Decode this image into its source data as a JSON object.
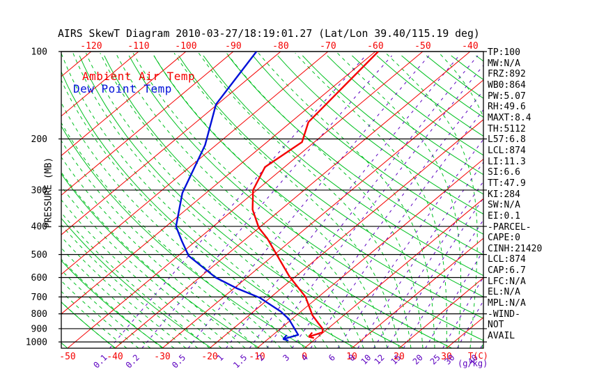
{
  "header": {
    "title": "AIRS SkewT Diagram 2010-03-27/18:19:01.27 (Lat/Lon 39.40/115.19 deg)"
  },
  "legend": {
    "temp": "Ambient Air Temp",
    "dewpoint": "Dew Point Temp"
  },
  "axes": {
    "pressure_label": "PRESSURE (MB)",
    "temp_unit_label": "T(C)",
    "mixing_unit_label": "(g/kg)"
  },
  "stats": {
    "items": [
      "TP:100",
      "MW:N/A",
      "FRZ:892",
      "WB0:864",
      "PW:5.07",
      "RH:49.6",
      "MAXT:8.4",
      "TH:5112",
      "L57:6.8",
      "LCL:874",
      "LI:11.3",
      "SI:6.6",
      "TT:47.9",
      "KI:284",
      "SW:N/A",
      "EI:0.1",
      "-PARCEL-",
      "CAPE:0",
      "CINH:21420",
      "LCL:874",
      "CAP:6.7",
      "LFC:N/A",
      "EL:N/A",
      "MPL:N/A",
      "-WIND-",
      "NOT",
      "AVAIL"
    ]
  },
  "chart_data": {
    "type": "skewt-log-p",
    "title": "AIRS SkewT Diagram 2010-03-27/18:19:01.27 (Lat/Lon 39.40/115.19 deg)",
    "pressure_axis": {
      "label": "PRESSURE (MB)",
      "ticks_mb": [
        100,
        200,
        300,
        400,
        500,
        600,
        700,
        800,
        900,
        1000
      ],
      "range_mb": [
        100,
        1051
      ],
      "scale": "log"
    },
    "temp_axis": {
      "unit": "T(C)",
      "bottom_ticks_c": [
        -50,
        -40,
        -30,
        -20,
        -10,
        0,
        10,
        20,
        30
      ],
      "top_ticks_c": [
        -120,
        -110,
        -100,
        -90,
        -80,
        -70,
        -60,
        -50,
        -40
      ],
      "skew": "isotherms slant up-right ~50 deg"
    },
    "isotherms_c": {
      "start": -130,
      "end": 40,
      "step": 10
    },
    "dry_adiabats_theta_k": {
      "start": 220,
      "end": 450,
      "step": 10
    },
    "moist_adiabats_start_c": {
      "start": -40,
      "end": 45,
      "step": 2.5
    },
    "mixing_ratio_lines_gkg": [
      0.1,
      0.2,
      0.5,
      1,
      1.5,
      2,
      3,
      4,
      6,
      8,
      10,
      12,
      15,
      20,
      25,
      30,
      40
    ],
    "mixing_ratio_label_unit": "(g/kg)",
    "series": [
      {
        "name": "Ambient Air Temp",
        "color": "#f40000",
        "points_p_mb_t_c": [
          [
            100,
            -59.4
          ],
          [
            175,
            -56.3
          ],
          [
            205,
            -52.6
          ],
          [
            250,
            -54.1
          ],
          [
            300,
            -50.8
          ],
          [
            350,
            -46.0
          ],
          [
            405,
            -40.0
          ],
          [
            440,
            -35.6
          ],
          [
            595,
            -21.3
          ],
          [
            700,
            -12.7
          ],
          [
            810,
            -6.6
          ],
          [
            860,
            -3.5
          ],
          [
            900,
            -1.1
          ],
          [
            926,
            -0.2
          ],
          [
            960,
            -2.0
          ]
        ]
      },
      {
        "name": "Dew Point Temp",
        "color": "#0010d8",
        "points_p_mb_t_c": [
          [
            100,
            -85.1
          ],
          [
            152,
            -80.3
          ],
          [
            210,
            -72.3
          ],
          [
            307,
            -65.0
          ],
          [
            400,
            -57.9
          ],
          [
            450,
            -52.9
          ],
          [
            505,
            -47.8
          ],
          [
            600,
            -36.6
          ],
          [
            655,
            -29.2
          ],
          [
            705,
            -22.1
          ],
          [
            785,
            -14.3
          ],
          [
            835,
            -10.6
          ],
          [
            945,
            -4.7
          ],
          [
            978,
            -6.8
          ]
        ]
      }
    ],
    "colors": {
      "isotherm": "#f40000",
      "dry_adiabat": "#00c020",
      "moist_adiabat": "#00c020",
      "mixing_ratio": "#5c00c0",
      "pressure_line": "#000000",
      "temperature_trace": "#f40000",
      "dewpoint_trace": "#0010d8"
    },
    "grid": true,
    "legend_position": "top-left-inside"
  }
}
